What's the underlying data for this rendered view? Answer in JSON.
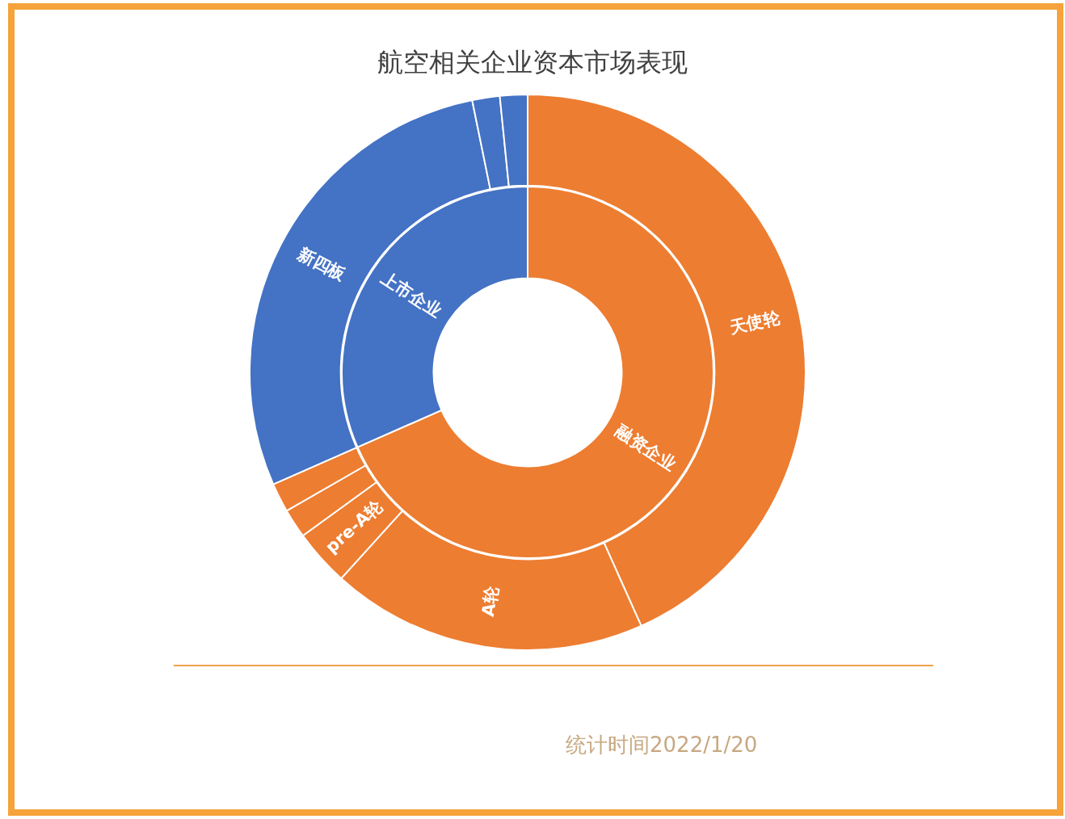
{
  "chart_data": [
    {
      "type": "donut",
      "title": "航空相关企业资本市场表现",
      "categories": [
        "天使轮",
        "A轮",
        "pre-A轮",
        null,
        null,
        "新四板",
        null,
        null
      ],
      "values": [
        43.3,
        18.4,
        3.3,
        1.7,
        1.7,
        28.4,
        1.6,
        1.6
      ],
      "colors": [
        "#ed7d31",
        "#ed7d31",
        "#ed7d31",
        "#ed7d31",
        "#ed7d31",
        "#4472c4",
        "#4472c4",
        "#4472c4"
      ],
      "annotations": [
        "统计时间2022/1/20"
      ]
    },
    {
      "type": "donut",
      "categories": [
        "融资企业",
        "上市企业"
      ],
      "values": [
        68.4,
        31.6
      ],
      "colors": [
        "#ed7d31",
        "#4472c4"
      ]
    }
  ]
}
